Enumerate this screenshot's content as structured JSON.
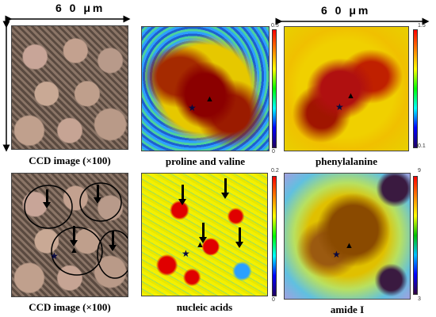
{
  "scale_bars": {
    "left": "6 0 μm",
    "right": "6 0 μm"
  },
  "panels": {
    "ccd_top": {
      "caption": "CCD image (×100)"
    },
    "proline_valine": {
      "caption": "proline and valine",
      "cb_max": "0.5",
      "cb_min": "0"
    },
    "phenylalanine": {
      "caption": "phenylalanine",
      "cb_max": "1.5",
      "cb_min": "0.1"
    },
    "ccd_bottom": {
      "caption": "CCD image (×100)"
    },
    "nucleic_acids": {
      "caption": "nucleic acids",
      "cb_max": "0.2",
      "cb_min": "0"
    },
    "amide_i": {
      "caption": "amide I",
      "cb_max": "9",
      "cb_min": "3"
    }
  },
  "markers": {
    "star": "★",
    "triangle": "▲"
  },
  "icons": {
    "arrow": "down-arrow-icon",
    "star": "star-icon",
    "triangle": "triangle-icon"
  }
}
